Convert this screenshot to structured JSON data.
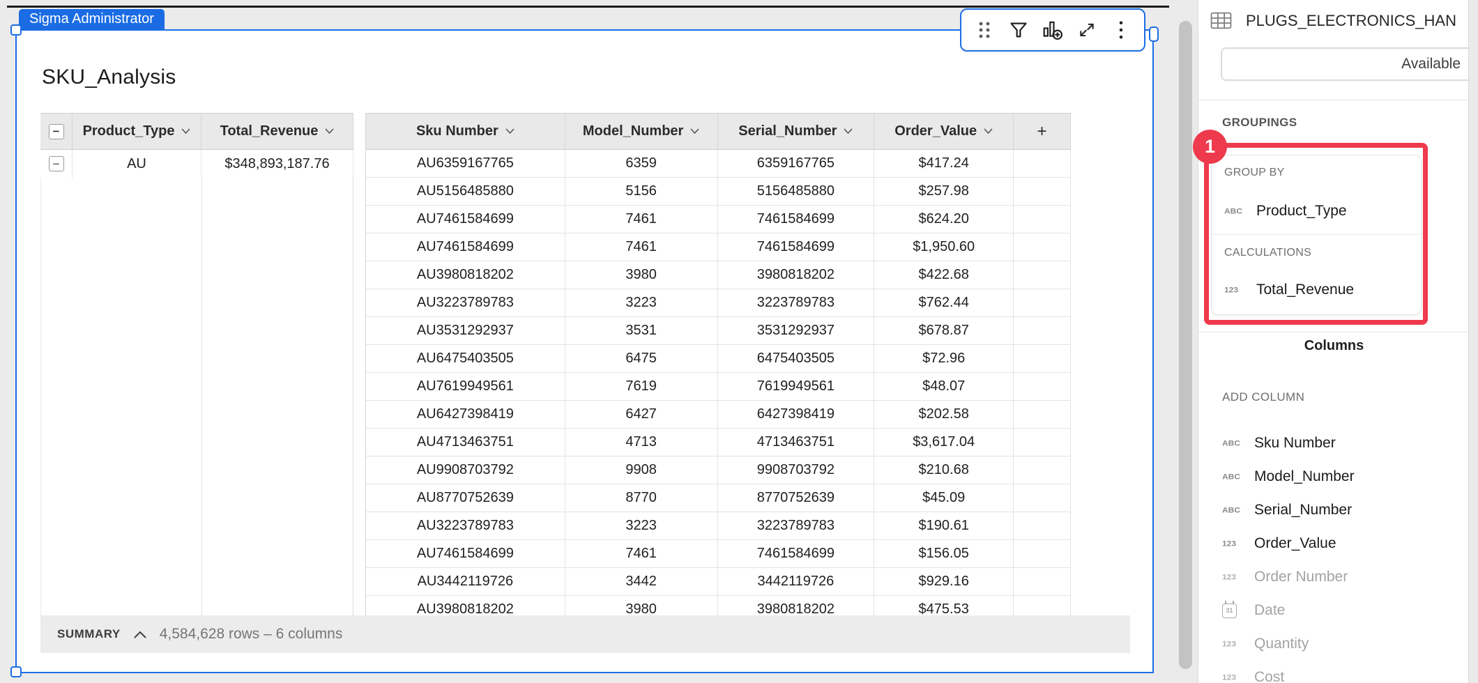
{
  "page": {
    "user_tag": "Sigma Administrator"
  },
  "element": {
    "title": "SKU_Analysis"
  },
  "toolbar": {
    "icons": [
      "drag-handle",
      "filter",
      "create-child-chart",
      "maximize",
      "more-menu"
    ]
  },
  "table": {
    "collapse_glyph": "−",
    "group_columns": [
      {
        "label": "Product_Type"
      },
      {
        "label": "Total_Revenue"
      }
    ],
    "detail_columns": [
      "Sku Number",
      "Model_Number",
      "Serial_Number",
      "Order_Value"
    ],
    "add_column_label": "+",
    "group_row": {
      "product_type": "AU",
      "total_revenue": "$348,893,187.76"
    },
    "rows": [
      {
        "sku": "AU6359167765",
        "model": "6359",
        "serial": "6359167765",
        "value": "$417.24"
      },
      {
        "sku": "AU5156485880",
        "model": "5156",
        "serial": "5156485880",
        "value": "$257.98"
      },
      {
        "sku": "AU7461584699",
        "model": "7461",
        "serial": "7461584699",
        "value": "$624.20"
      },
      {
        "sku": "AU7461584699",
        "model": "7461",
        "serial": "7461584699",
        "value": "$1,950.60"
      },
      {
        "sku": "AU3980818202",
        "model": "3980",
        "serial": "3980818202",
        "value": "$422.68"
      },
      {
        "sku": "AU3223789783",
        "model": "3223",
        "serial": "3223789783",
        "value": "$762.44"
      },
      {
        "sku": "AU3531292937",
        "model": "3531",
        "serial": "3531292937",
        "value": "$678.87"
      },
      {
        "sku": "AU6475403505",
        "model": "6475",
        "serial": "6475403505",
        "value": "$72.96"
      },
      {
        "sku": "AU7619949561",
        "model": "7619",
        "serial": "7619949561",
        "value": "$48.07"
      },
      {
        "sku": "AU6427398419",
        "model": "6427",
        "serial": "6427398419",
        "value": "$202.58"
      },
      {
        "sku": "AU4713463751",
        "model": "4713",
        "serial": "4713463751",
        "value": "$3,617.04"
      },
      {
        "sku": "AU9908703792",
        "model": "9908",
        "serial": "9908703792",
        "value": "$210.68"
      },
      {
        "sku": "AU8770752639",
        "model": "8770",
        "serial": "8770752639",
        "value": "$45.09"
      },
      {
        "sku": "AU3223789783",
        "model": "3223",
        "serial": "3223789783",
        "value": "$190.61"
      },
      {
        "sku": "AU7461584699",
        "model": "7461",
        "serial": "7461584699",
        "value": "$156.05"
      },
      {
        "sku": "AU3442119726",
        "model": "3442",
        "serial": "3442119726",
        "value": "$929.16"
      },
      {
        "sku": "AU3980818202",
        "model": "3980",
        "serial": "3980818202",
        "value": "$475.53"
      }
    ]
  },
  "summary": {
    "label": "SUMMARY",
    "text": "4,584,628 rows – 6 columns"
  },
  "sidebar": {
    "source_name": "PLUGS_ELECTRONICS_HAN",
    "search_value": "Available",
    "groupings_label": "GROUPINGS",
    "annotation": {
      "number": "1",
      "color": "#ee3a4c"
    },
    "group_by": {
      "label": "GROUP BY",
      "items": [
        {
          "icon_text": "ABC",
          "icon_kind": "text",
          "label": "Product_Type"
        }
      ]
    },
    "calculations": {
      "label": "CALCULATIONS",
      "items": [
        {
          "icon_text": "123",
          "icon_kind": "text",
          "label": "Total_Revenue"
        }
      ]
    },
    "columns_tab_label": "Columns",
    "add_column_label": "ADD COLUMN",
    "column_items": [
      {
        "icon_text": "ABC",
        "icon_kind": "text",
        "label": "Sku Number",
        "state": "active"
      },
      {
        "icon_text": "ABC",
        "icon_kind": "text",
        "label": "Model_Number",
        "state": "active"
      },
      {
        "icon_text": "ABC",
        "icon_kind": "text",
        "label": "Serial_Number",
        "state": "active"
      },
      {
        "icon_text": "123",
        "icon_kind": "text",
        "label": "Order_Value",
        "state": "active"
      },
      {
        "icon_text": "123",
        "icon_kind": "text",
        "label": "Order Number",
        "state": "inactive"
      },
      {
        "icon_text": "31",
        "icon_kind": "calendar",
        "label": "Date",
        "state": "inactive"
      },
      {
        "icon_text": "123",
        "icon_kind": "text",
        "label": "Quantity",
        "state": "inactive"
      },
      {
        "icon_text": "123",
        "icon_kind": "text",
        "label": "Cost",
        "state": "inactive"
      }
    ]
  },
  "colors": {
    "accent_blue": "#1b6ce4",
    "annotation_red": "#ee3a4c",
    "header_gray": "#e9e9e9",
    "page_bg": "#ebebeb"
  }
}
